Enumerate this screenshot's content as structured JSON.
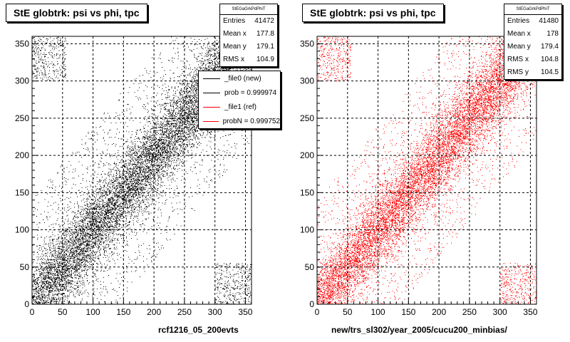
{
  "chart_data": [
    {
      "type": "scatter",
      "title": "StE globtrk: psi vs phi, tpc",
      "xlabel": "rcf1216_05_200evts",
      "ylabel": "",
      "xlim": [
        0,
        360
      ],
      "ylim": [
        0,
        360
      ],
      "x_ticks": [
        0,
        50,
        100,
        150,
        200,
        250,
        300,
        350
      ],
      "y_ticks": [
        0,
        50,
        100,
        150,
        200,
        250,
        300,
        350
      ],
      "grid": true,
      "marker_color": "#000000",
      "stats": {
        "header": "StEGaGrkPdPhiT",
        "rows": [
          {
            "label": "Entries",
            "value": "41472"
          },
          {
            "label": "Mean x",
            "value": "177.8"
          },
          {
            "label": "Mean y",
            "value": "179.1"
          },
          {
            "label": "RMS x",
            "value": "104.9"
          }
        ]
      },
      "legend": {
        "placement": "top-right",
        "entries": [
          {
            "label": "_file0 (new)",
            "color": "#000000"
          },
          {
            "label": "prob = 0.999974",
            "color": "#000000"
          },
          {
            "label": "_file1 (ref)",
            "color": "#ff0000"
          },
          {
            "label": "probN = 0.999752",
            "color": "#ff0000"
          }
        ]
      },
      "distribution": "points concentrated along diagonal y = x with additional clusters near (0,360) and (360,0)"
    },
    {
      "type": "scatter",
      "title": "StE globtrk: psi vs phi, tpc",
      "xlabel": "new/trs_sl302/year_2005/cucu200_minbias/",
      "ylabel": "",
      "xlim": [
        0,
        360
      ],
      "ylim": [
        0,
        360
      ],
      "x_ticks": [
        0,
        50,
        100,
        150,
        200,
        250,
        300,
        350
      ],
      "y_ticks": [
        0,
        50,
        100,
        150,
        200,
        250,
        300,
        350
      ],
      "grid": true,
      "marker_color": "#ff0000",
      "stats": {
        "header": "StEGaGrkPdPhiT",
        "rows": [
          {
            "label": "Entries",
            "value": "41480"
          },
          {
            "label": "Mean x",
            "value": "178"
          },
          {
            "label": "Mean y",
            "value": "179.4"
          },
          {
            "label": "RMS x",
            "value": "104.8"
          },
          {
            "label": "RMS y",
            "value": "104.5"
          }
        ]
      },
      "distribution": "points concentrated along diagonal y = x with additional clusters near (0,360) and (360,0)"
    }
  ]
}
